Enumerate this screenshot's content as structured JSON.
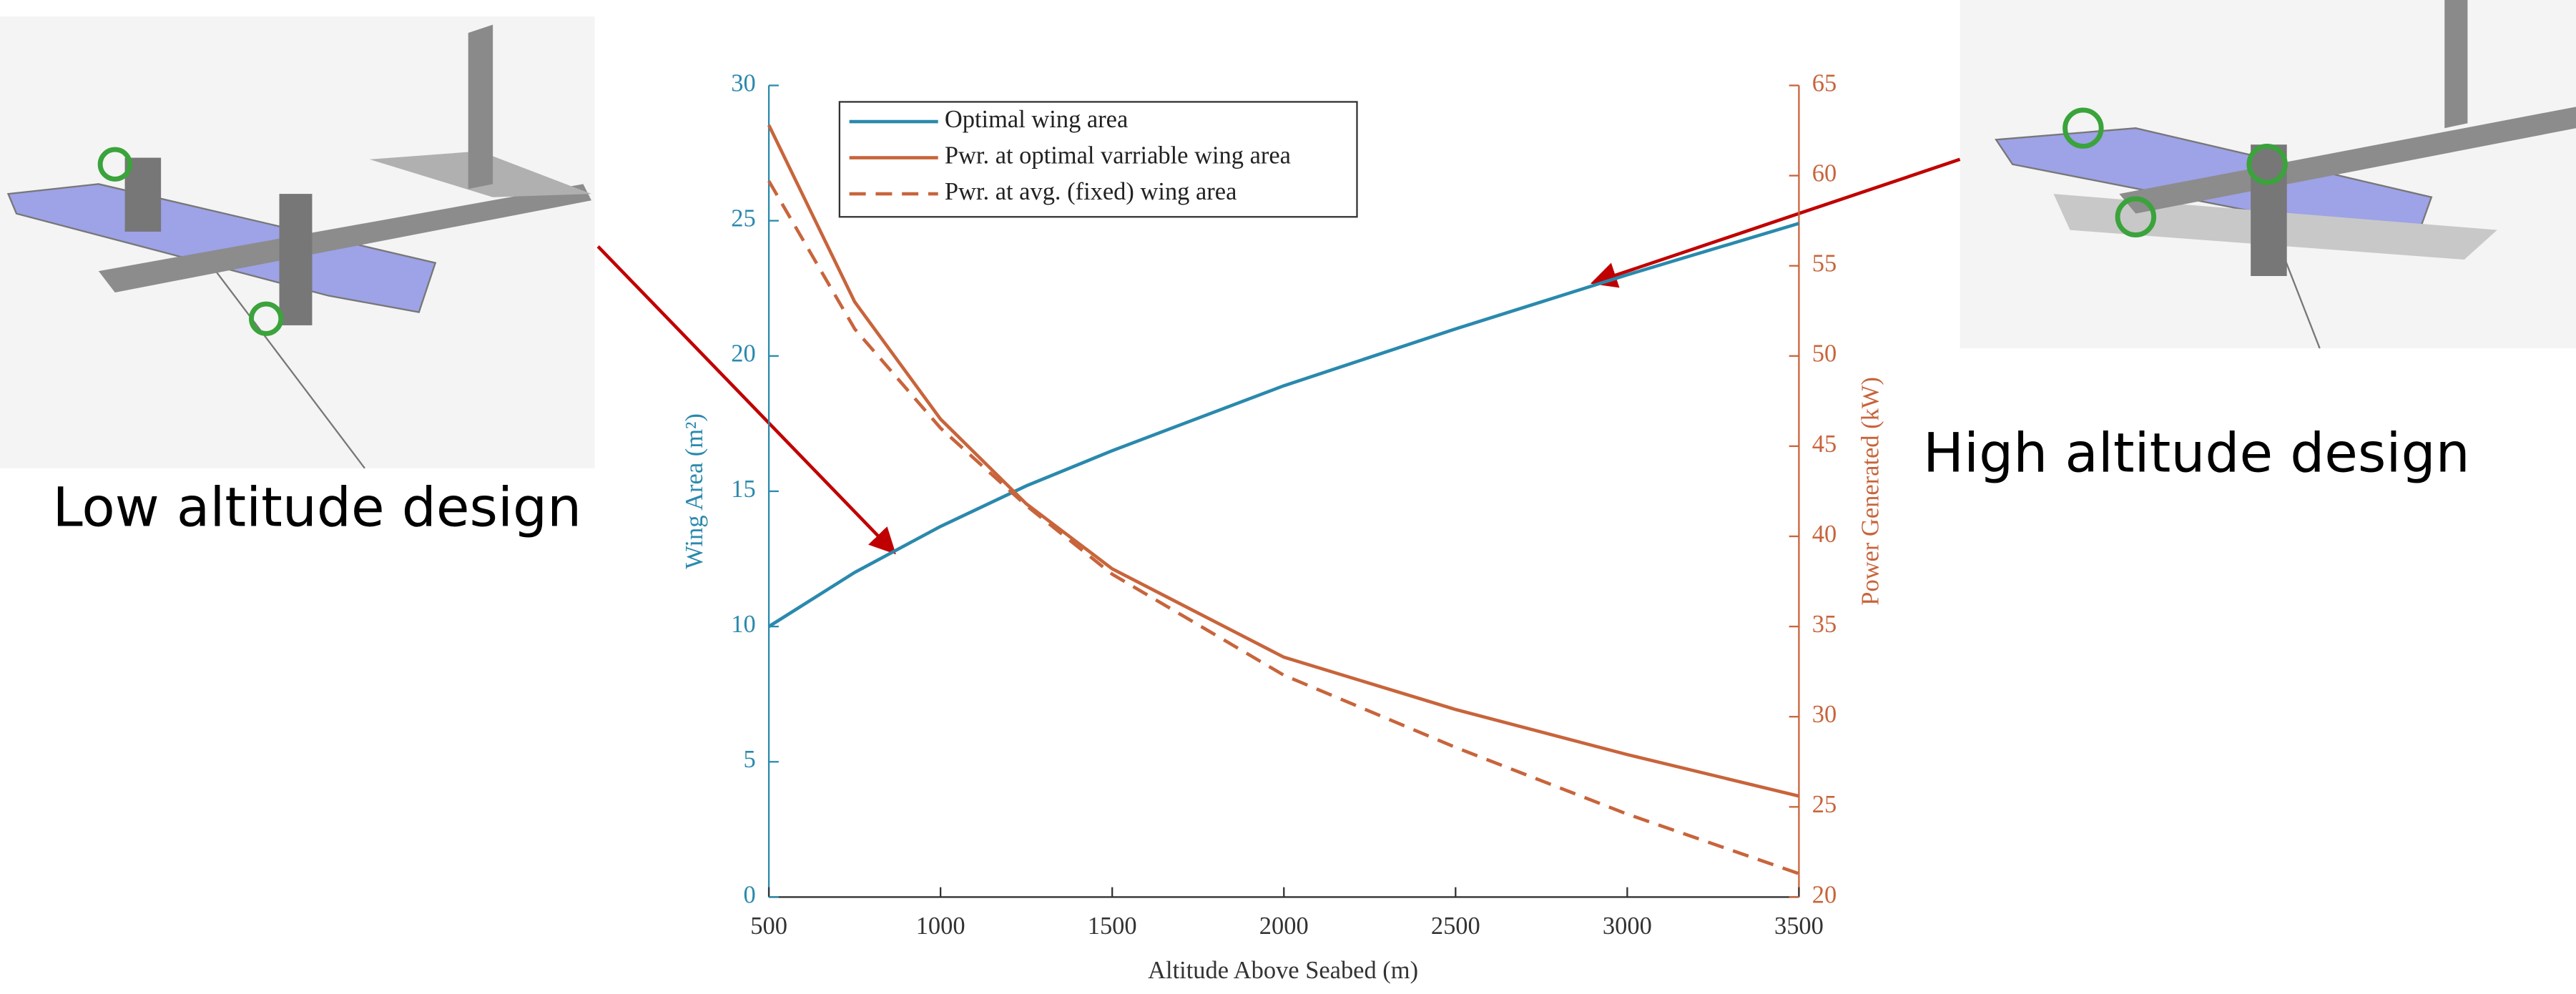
{
  "chart_data": {
    "type": "line",
    "x_label": "Altitude Above Seabed (m)",
    "y_label": "Wing Area (m²)",
    "y2_label": "Power Generated (kW)",
    "x": [
      500,
      750,
      1000,
      1250,
      1500,
      2000,
      2500,
      3000,
      3500
    ],
    "series": [
      {
        "name": "Optimal wing area",
        "color": "#2a89ad",
        "dash": false,
        "values": [
          10,
          12,
          13.7,
          15.2,
          16.5,
          18.9,
          21,
          23,
          24.9
        ]
      },
      {
        "name": "Pwr. at optimal varriable wing area",
        "color": "#c8643b",
        "dash": false,
        "axis": "y2",
        "values": [
          62.8,
          53,
          46.5,
          41.8,
          38.2,
          33.3,
          30.4,
          27.9,
          25.6
        ]
      },
      {
        "name": "Pwr. at avg. (fixed) wing area",
        "color": "#c8643b",
        "dash": true,
        "axis": "y2",
        "values": [
          59.7,
          51.5,
          46,
          41.7,
          37.9,
          32.3,
          28.3,
          24.6,
          21.3
        ]
      }
    ],
    "xlim": [
      500,
      3500
    ],
    "xticks": [
      500,
      1000,
      1500,
      2000,
      2500,
      3000,
      3500
    ],
    "ylim": [
      0,
      30
    ],
    "yticks": [
      0,
      5,
      10,
      15,
      20,
      25,
      30
    ],
    "y2lim": [
      20,
      65
    ],
    "y2ticks": [
      20,
      25,
      30,
      35,
      40,
      45,
      50,
      55,
      60,
      65
    ],
    "legend": "upper-left",
    "annotations": [
      "Low altitude design",
      "High altitude design"
    ]
  }
}
